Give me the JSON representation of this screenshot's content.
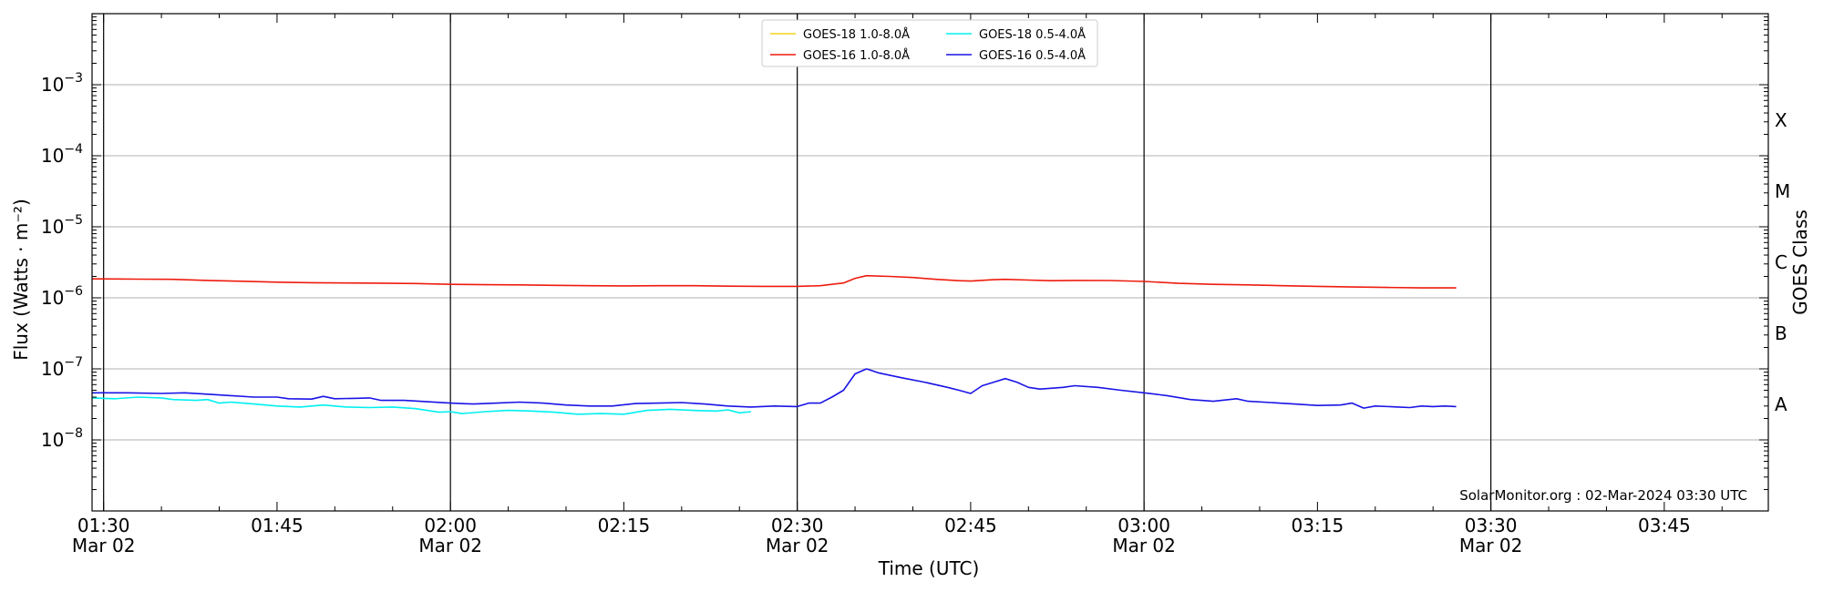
{
  "chart_data": {
    "type": "line",
    "xlabel": "Time (UTC)",
    "ylabel": "Flux (Watts · m⁻²)",
    "y2label": "GOES Class",
    "yscale": "log",
    "ylim": [
      1e-09,
      0.01
    ],
    "xlim": [
      "01:29",
      "03:54"
    ],
    "grid": "horizontal at decades",
    "legend_placement": "top-center",
    "credit": "SolarMonitor.org : 02-Mar-2024 03:30 UTC",
    "x_ticks": [
      {
        "label": "01:30",
        "sub": "Mar 02"
      },
      {
        "label": "01:45",
        "sub": ""
      },
      {
        "label": "02:00",
        "sub": "Mar 02"
      },
      {
        "label": "02:15",
        "sub": ""
      },
      {
        "label": "02:30",
        "sub": "Mar 02"
      },
      {
        "label": "02:45",
        "sub": ""
      },
      {
        "label": "03:00",
        "sub": "Mar 02"
      },
      {
        "label": "03:15",
        "sub": ""
      },
      {
        "label": "03:30",
        "sub": "Mar 02"
      },
      {
        "label": "03:45",
        "sub": ""
      }
    ],
    "vertical_markers": [
      "01:30",
      "02:00",
      "02:30",
      "03:00",
      "03:30"
    ],
    "y_ticks": [
      {
        "value": 1e-08,
        "base": "10",
        "exp": "−8"
      },
      {
        "value": 1e-07,
        "base": "10",
        "exp": "−7"
      },
      {
        "value": 1e-06,
        "base": "10",
        "exp": "−6"
      },
      {
        "value": 1e-05,
        "base": "10",
        "exp": "−5"
      },
      {
        "value": 0.0001,
        "base": "10",
        "exp": "−4"
      },
      {
        "value": 0.001,
        "base": "10",
        "exp": "−3"
      }
    ],
    "goes_classes": [
      {
        "label": "A",
        "value": 3.16e-08
      },
      {
        "label": "B",
        "value": 3.16e-07
      },
      {
        "label": "C",
        "value": 3.16e-06
      },
      {
        "label": "M",
        "value": 3.16e-05
      },
      {
        "label": "X",
        "value": 0.000316
      }
    ],
    "series": [
      {
        "name": "GOES-18 1.0-8.0Å",
        "color": "#f2d21b",
        "points": []
      },
      {
        "name": "GOES-18 0.5-4.0Å",
        "color": "#00f0f0",
        "points": [
          [
            "01:29",
            3.9e-08
          ],
          [
            "01:31",
            3.8e-08
          ],
          [
            "01:33",
            4e-08
          ],
          [
            "01:35",
            3.9e-08
          ],
          [
            "01:36",
            3.7e-08
          ],
          [
            "01:38",
            3.6e-08
          ],
          [
            "01:39",
            3.7e-08
          ],
          [
            "01:40",
            3.3e-08
          ],
          [
            "01:41",
            3.4e-08
          ],
          [
            "01:43",
            3.2e-08
          ],
          [
            "01:45",
            3e-08
          ],
          [
            "01:47",
            2.9e-08
          ],
          [
            "01:49",
            3.1e-08
          ],
          [
            "01:51",
            2.9e-08
          ],
          [
            "01:53",
            2.85e-08
          ],
          [
            "01:55",
            2.9e-08
          ],
          [
            "01:57",
            2.75e-08
          ],
          [
            "01:59",
            2.45e-08
          ],
          [
            "02:00",
            2.5e-08
          ],
          [
            "02:01",
            2.35e-08
          ],
          [
            "02:03",
            2.5e-08
          ],
          [
            "02:05",
            2.6e-08
          ],
          [
            "02:07",
            2.55e-08
          ],
          [
            "02:09",
            2.45e-08
          ],
          [
            "02:11",
            2.3e-08
          ],
          [
            "02:13",
            2.35e-08
          ],
          [
            "02:15",
            2.3e-08
          ],
          [
            "02:17",
            2.6e-08
          ],
          [
            "02:19",
            2.7e-08
          ],
          [
            "02:21",
            2.6e-08
          ],
          [
            "02:23",
            2.55e-08
          ],
          [
            "02:24",
            2.65e-08
          ],
          [
            "02:25",
            2.4e-08
          ],
          [
            "02:26",
            2.5e-08
          ]
        ]
      },
      {
        "name": "GOES-16 1.0-8.0Å",
        "color": "#ee1c0e",
        "points": [
          [
            "01:29",
            1.85e-06
          ],
          [
            "01:33",
            1.83e-06
          ],
          [
            "01:36",
            1.82e-06
          ],
          [
            "01:39",
            1.76e-06
          ],
          [
            "01:42",
            1.71e-06
          ],
          [
            "01:45",
            1.66e-06
          ],
          [
            "01:48",
            1.63e-06
          ],
          [
            "01:51",
            1.62e-06
          ],
          [
            "01:54",
            1.61e-06
          ],
          [
            "01:57",
            1.59e-06
          ],
          [
            "02:00",
            1.55e-06
          ],
          [
            "02:03",
            1.53e-06
          ],
          [
            "02:06",
            1.52e-06
          ],
          [
            "02:09",
            1.5e-06
          ],
          [
            "02:12",
            1.48e-06
          ],
          [
            "02:15",
            1.47e-06
          ],
          [
            "02:18",
            1.48e-06
          ],
          [
            "02:21",
            1.48e-06
          ],
          [
            "02:24",
            1.46e-06
          ],
          [
            "02:27",
            1.45e-06
          ],
          [
            "02:30",
            1.45e-06
          ],
          [
            "02:32",
            1.48e-06
          ],
          [
            "02:34",
            1.62e-06
          ],
          [
            "02:35",
            1.88e-06
          ],
          [
            "02:36",
            2.05e-06
          ],
          [
            "02:38",
            2e-06
          ],
          [
            "02:40",
            1.93e-06
          ],
          [
            "02:42",
            1.82e-06
          ],
          [
            "02:44",
            1.74e-06
          ],
          [
            "02:45",
            1.72e-06
          ],
          [
            "02:47",
            1.8e-06
          ],
          [
            "02:48",
            1.82e-06
          ],
          [
            "02:50",
            1.78e-06
          ],
          [
            "02:52",
            1.74e-06
          ],
          [
            "02:54",
            1.76e-06
          ],
          [
            "02:57",
            1.75e-06
          ],
          [
            "03:00",
            1.7e-06
          ],
          [
            "03:03",
            1.6e-06
          ],
          [
            "03:06",
            1.55e-06
          ],
          [
            "03:09",
            1.52e-06
          ],
          [
            "03:12",
            1.48e-06
          ],
          [
            "03:15",
            1.45e-06
          ],
          [
            "03:18",
            1.42e-06
          ],
          [
            "03:21",
            1.4e-06
          ],
          [
            "03:24",
            1.38e-06
          ],
          [
            "03:27",
            1.38e-06
          ]
        ]
      },
      {
        "name": "GOES-16 0.5-4.0Å",
        "color": "#1a14e6",
        "points": [
          [
            "01:29",
            4.6e-08
          ],
          [
            "01:32",
            4.6e-08
          ],
          [
            "01:35",
            4.5e-08
          ],
          [
            "01:37",
            4.6e-08
          ],
          [
            "01:39",
            4.4e-08
          ],
          [
            "01:41",
            4.2e-08
          ],
          [
            "01:43",
            4e-08
          ],
          [
            "01:45",
            4e-08
          ],
          [
            "01:46",
            3.8e-08
          ],
          [
            "01:48",
            3.75e-08
          ],
          [
            "01:49",
            4.1e-08
          ],
          [
            "01:50",
            3.8e-08
          ],
          [
            "01:52",
            3.85e-08
          ],
          [
            "01:53",
            3.9e-08
          ],
          [
            "01:54",
            3.6e-08
          ],
          [
            "01:56",
            3.6e-08
          ],
          [
            "01:58",
            3.45e-08
          ],
          [
            "02:00",
            3.3e-08
          ],
          [
            "02:02",
            3.2e-08
          ],
          [
            "02:04",
            3.3e-08
          ],
          [
            "02:06",
            3.4e-08
          ],
          [
            "02:08",
            3.3e-08
          ],
          [
            "02:10",
            3.1e-08
          ],
          [
            "02:12",
            3e-08
          ],
          [
            "02:14",
            3e-08
          ],
          [
            "02:16",
            3.25e-08
          ],
          [
            "02:18",
            3.3e-08
          ],
          [
            "02:20",
            3.35e-08
          ],
          [
            "02:22",
            3.2e-08
          ],
          [
            "02:24",
            3e-08
          ],
          [
            "02:26",
            2.9e-08
          ],
          [
            "02:28",
            3e-08
          ],
          [
            "02:30",
            2.95e-08
          ],
          [
            "02:31",
            3.3e-08
          ],
          [
            "02:32",
            3.3e-08
          ],
          [
            "02:33",
            4e-08
          ],
          [
            "02:34",
            5e-08
          ],
          [
            "02:35",
            8.5e-08
          ],
          [
            "02:36",
            1e-07
          ],
          [
            "02:37",
            8.8e-08
          ],
          [
            "02:39",
            7.5e-08
          ],
          [
            "02:41",
            6.5e-08
          ],
          [
            "02:43",
            5.5e-08
          ],
          [
            "02:44",
            5e-08
          ],
          [
            "02:45",
            4.5e-08
          ],
          [
            "02:46",
            5.8e-08
          ],
          [
            "02:47",
            6.5e-08
          ],
          [
            "02:48",
            7.3e-08
          ],
          [
            "02:49",
            6.5e-08
          ],
          [
            "02:50",
            5.5e-08
          ],
          [
            "02:51",
            5.2e-08
          ],
          [
            "02:53",
            5.5e-08
          ],
          [
            "02:54",
            5.8e-08
          ],
          [
            "02:56",
            5.5e-08
          ],
          [
            "02:58",
            5e-08
          ],
          [
            "03:00",
            4.6e-08
          ],
          [
            "03:02",
            4.2e-08
          ],
          [
            "03:04",
            3.7e-08
          ],
          [
            "03:06",
            3.5e-08
          ],
          [
            "03:08",
            3.8e-08
          ],
          [
            "03:09",
            3.5e-08
          ],
          [
            "03:11",
            3.35e-08
          ],
          [
            "03:13",
            3.2e-08
          ],
          [
            "03:15",
            3.05e-08
          ],
          [
            "03:17",
            3.1e-08
          ],
          [
            "03:18",
            3.3e-08
          ],
          [
            "03:19",
            2.8e-08
          ],
          [
            "03:20",
            3e-08
          ],
          [
            "03:22",
            2.9e-08
          ],
          [
            "03:23",
            2.85e-08
          ],
          [
            "03:24",
            3e-08
          ],
          [
            "03:25",
            2.95e-08
          ],
          [
            "03:26",
            3e-08
          ],
          [
            "03:27",
            2.95e-08
          ]
        ]
      }
    ],
    "legend_order": [
      0,
      2,
      1,
      3
    ]
  }
}
